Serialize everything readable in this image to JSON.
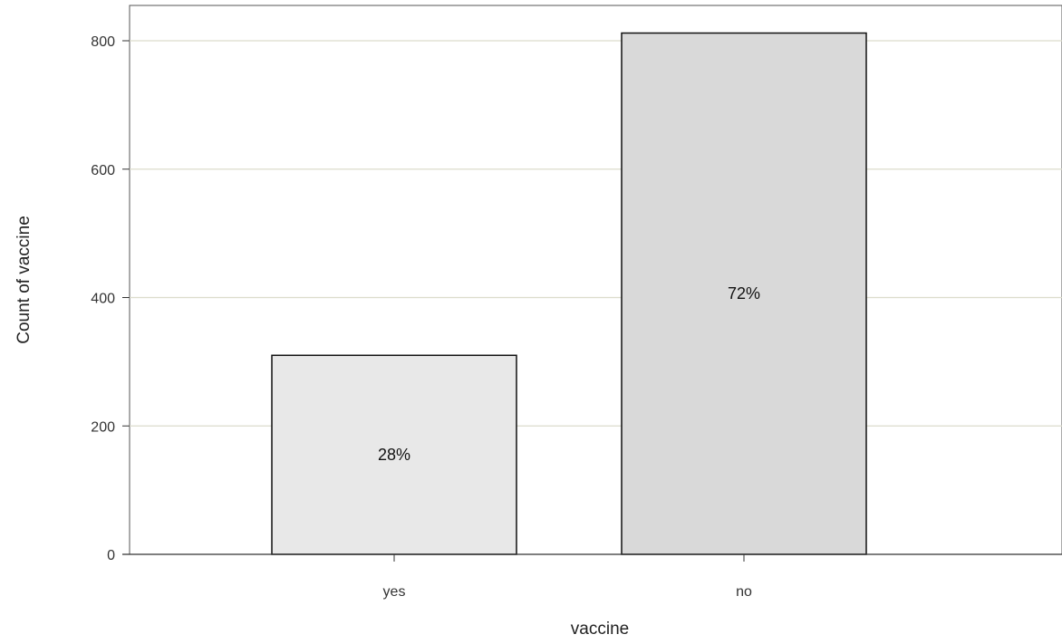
{
  "chart_data": {
    "type": "bar",
    "title": "",
    "xlabel": "vaccine",
    "ylabel": "Count of vaccine",
    "categories": [
      "yes",
      "no"
    ],
    "values": [
      310,
      812
    ],
    "data_labels": [
      "28%",
      "72%"
    ],
    "ylim": [
      0,
      850
    ],
    "yticks": [
      0,
      200,
      400,
      600,
      800
    ],
    "grid": true,
    "legend": "none",
    "colors": {
      "bars": [
        "#e8e8e8",
        "#d9d9d9"
      ],
      "bar_stroke": "#111111",
      "grid": "#dcdccc",
      "axis": "#333333"
    }
  }
}
